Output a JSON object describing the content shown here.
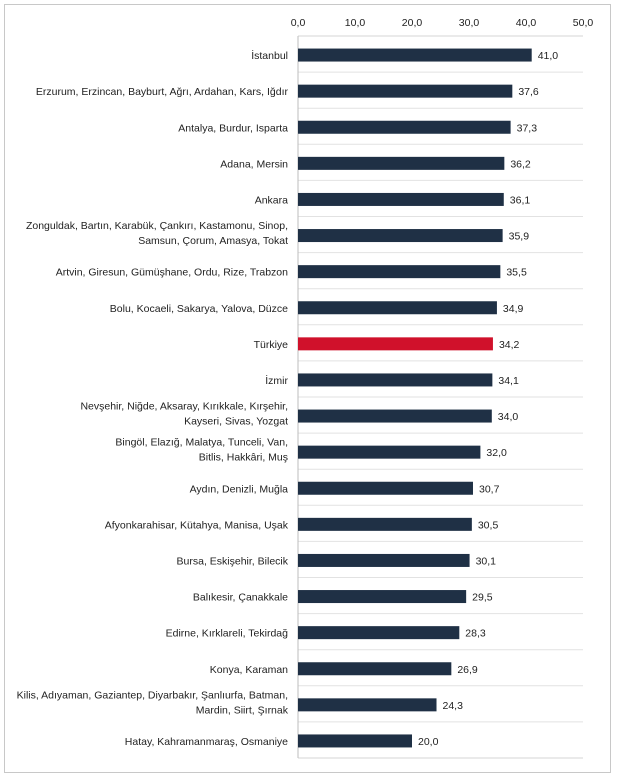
{
  "chart_data": {
    "type": "bar",
    "orientation": "horizontal",
    "title": "",
    "xlabel": "",
    "ylabel": "",
    "xlim": [
      0,
      50
    ],
    "ticks": [
      "0,0",
      "10,0",
      "20,0",
      "30,0",
      "40,0",
      "50,0"
    ],
    "grid": true,
    "colors": {
      "default": "#1f3045",
      "highlight": "#d0112b"
    },
    "categories": [
      [
        "İstanbul"
      ],
      [
        "Erzurum, Erzincan, Bayburt, Ağrı, Ardahan, Kars, Iğdır"
      ],
      [
        "Antalya, Burdur, Isparta"
      ],
      [
        "Adana, Mersin"
      ],
      [
        "Ankara"
      ],
      [
        "Zonguldak, Bartın, Karabük, Çankırı, Kastamonu, Sinop,",
        "Samsun, Çorum, Amasya, Tokat"
      ],
      [
        "Artvin, Giresun, Gümüşhane, Ordu, Rize, Trabzon"
      ],
      [
        "Bolu, Kocaeli, Sakarya, Yalova, Düzce"
      ],
      [
        "Türkiye"
      ],
      [
        "İzmir"
      ],
      [
        "Nevşehir, Niğde, Aksaray, Kırıkkale, Kırşehir,",
        "Kayseri, Sivas, Yozgat"
      ],
      [
        "Bingöl, Elazığ, Malatya, Tunceli, Van,",
        "Bitlis, Hakkâri, Muş"
      ],
      [
        "Aydın, Denizli, Muğla"
      ],
      [
        "Afyonkarahisar, Kütahya, Manisa, Uşak"
      ],
      [
        "Bursa, Eskişehir, Bilecik"
      ],
      [
        "Balıkesir, Çanakkale"
      ],
      [
        "Edirne, Kırklareli, Tekirdağ"
      ],
      [
        "Konya, Karaman"
      ],
      [
        "Kilis, Adıyaman, Gaziantep, Diyarbakır, Şanlıurfa, Batman,",
        "Mardin, Siirt, Şırnak"
      ],
      [
        "Hatay, Kahramanmaraş, Osmaniye"
      ]
    ],
    "values": [
      41.0,
      37.6,
      37.3,
      36.2,
      36.1,
      35.9,
      35.5,
      34.9,
      34.2,
      34.1,
      34.0,
      32.0,
      30.7,
      30.5,
      30.1,
      29.5,
      28.3,
      26.9,
      24.3,
      20.0
    ],
    "value_labels": [
      "41,0",
      "37,6",
      "37,3",
      "36,2",
      "36,1",
      "35,9",
      "35,5",
      "34,9",
      "34,2",
      "34,1",
      "34,0",
      "32,0",
      "30,7",
      "30,5",
      "30,1",
      "29,5",
      "28,3",
      "26,9",
      "24,3",
      "20,0"
    ],
    "highlight_index": 8
  }
}
